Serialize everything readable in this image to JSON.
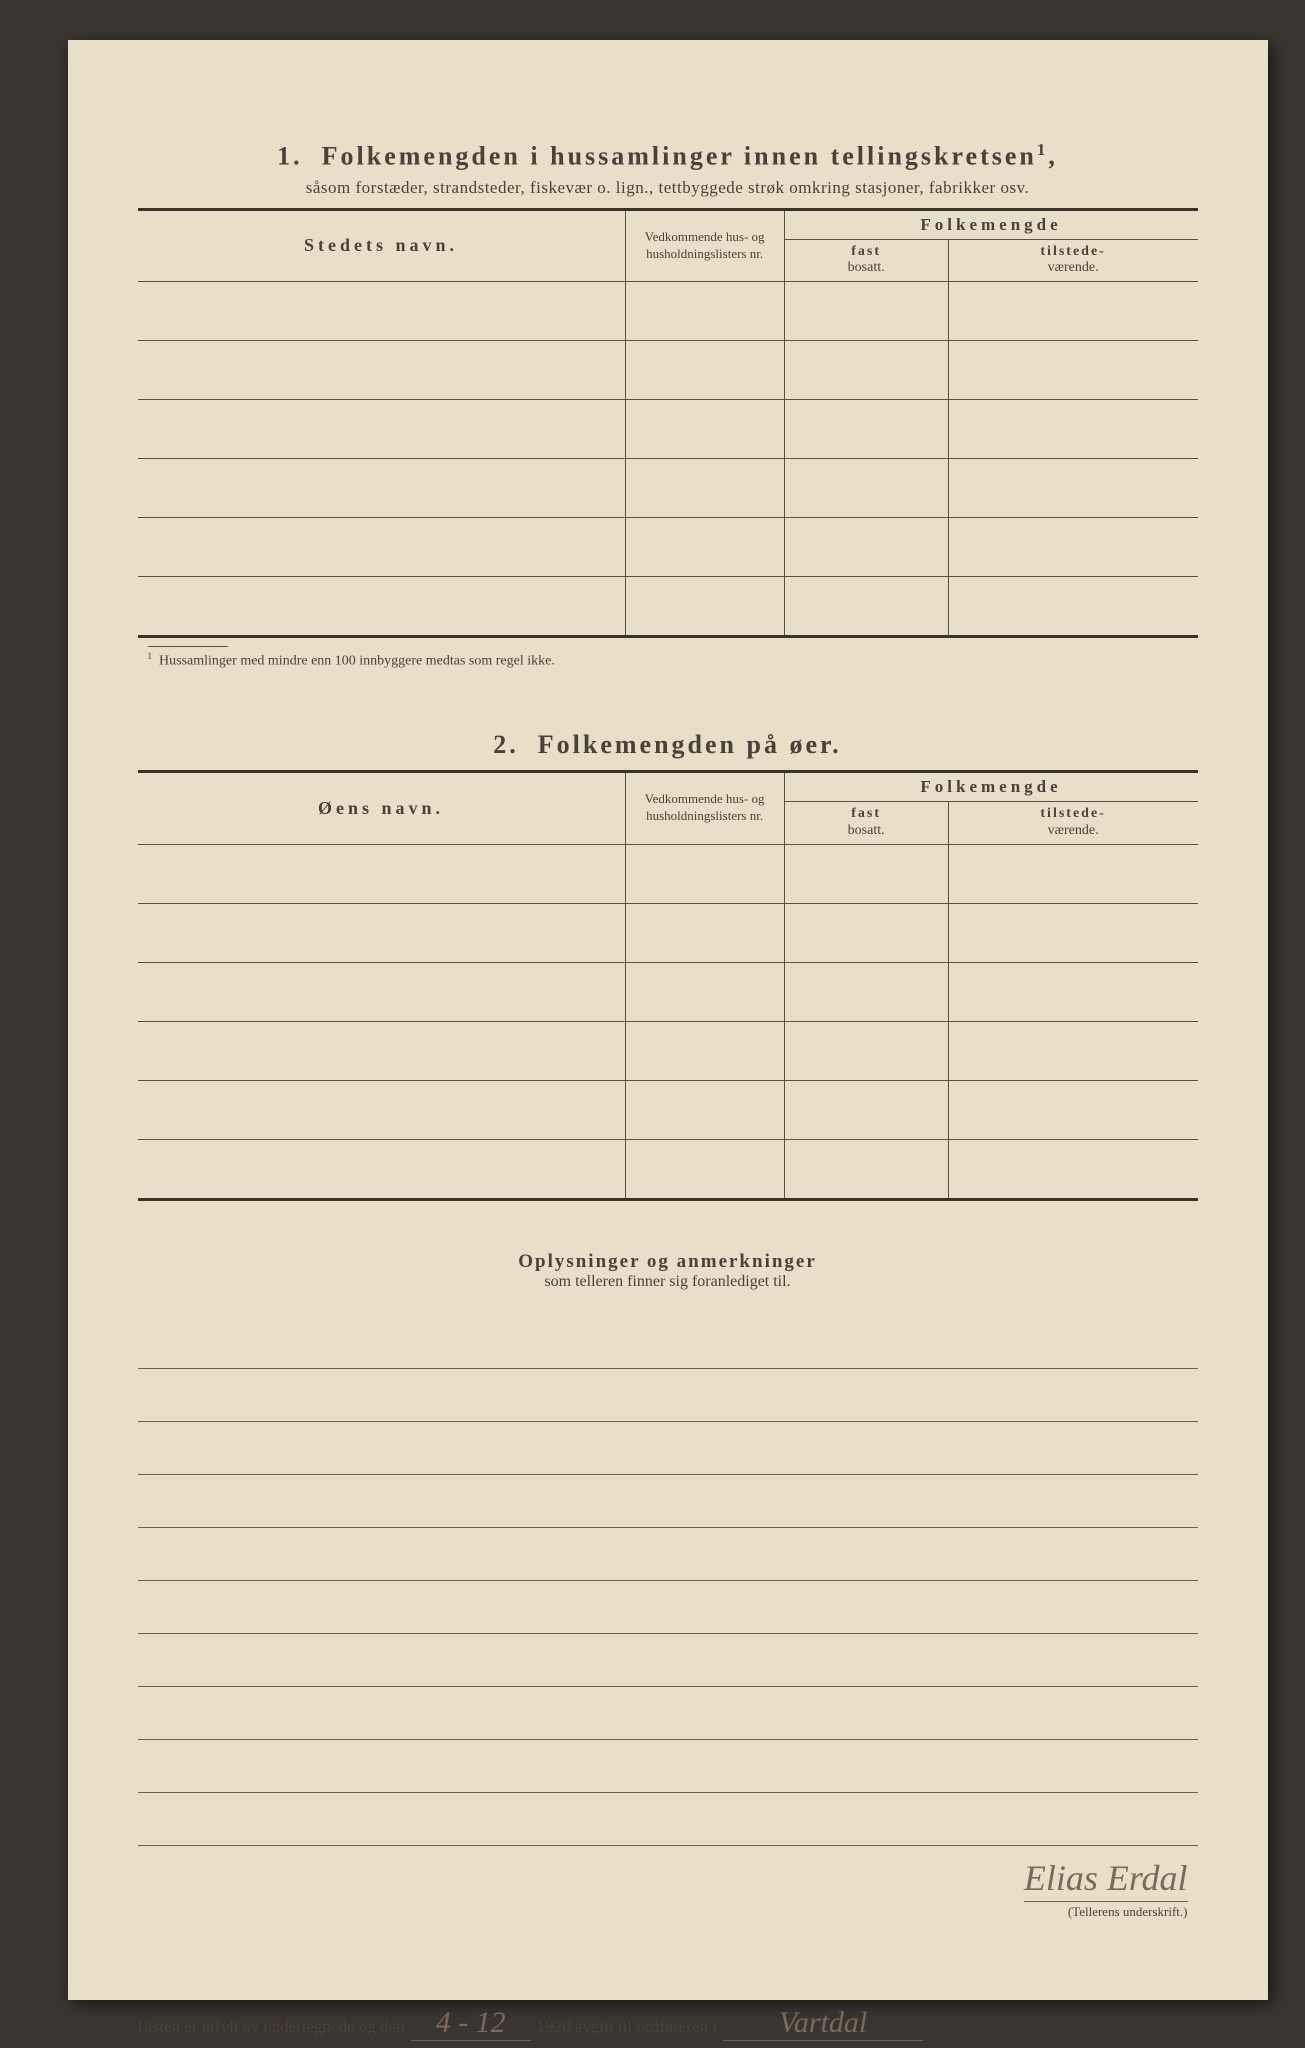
{
  "section1": {
    "number": "1.",
    "title": "Folkemengden i hussamlinger innen tellingskretsen",
    "title_sup": "1",
    "subtitle": "såsom forstæder, strandsteder, fiskevær o. lign., tettbyggede strøk omkring stasjoner, fabrikker osv.",
    "col_name": "Stedets navn.",
    "col_nr": "Vedkommende hus- og husholdningslisters nr.",
    "col_folkemengde": "Folkemengde",
    "col_fast": "fast",
    "col_fast_sub": "bosatt.",
    "col_tilstede": "tilstede-",
    "col_tilstede_sub": "værende.",
    "row_count": 6,
    "footnote_marker": "1",
    "footnote": "Hussamlinger med mindre enn 100 innbyggere medtas som regel ikke."
  },
  "section2": {
    "number": "2.",
    "title": "Folkemengden på øer.",
    "col_name": "Øens navn.",
    "col_nr": "Vedkommende hus- og husholdningslisters nr.",
    "col_folkemengde": "Folkemengde",
    "col_fast": "fast",
    "col_fast_sub": "bosatt.",
    "col_tilstede": "tilstede-",
    "col_tilstede_sub": "værende.",
    "row_count": 6
  },
  "remarks": {
    "title": "Oplysninger og anmerkninger",
    "subtitle": "som telleren finner sig foranlediget til.",
    "line_count": 10
  },
  "signature": {
    "prefix": "Listen er utfylt av undertegnede og den",
    "date_handwritten": "4 - 12",
    "year": "1920",
    "middle": "avgitt til ordføreren i",
    "place_handwritten": "Vartdal",
    "name_handwritten": "Elias Erdal",
    "caption": "(Tellerens underskrift.)"
  },
  "style": {
    "paper_color": "#e8dfc8",
    "ink_color": "#4a4238",
    "rule_color": "#5a5244",
    "handwriting_color": "#7a6a5a",
    "background": "#3a3530"
  }
}
